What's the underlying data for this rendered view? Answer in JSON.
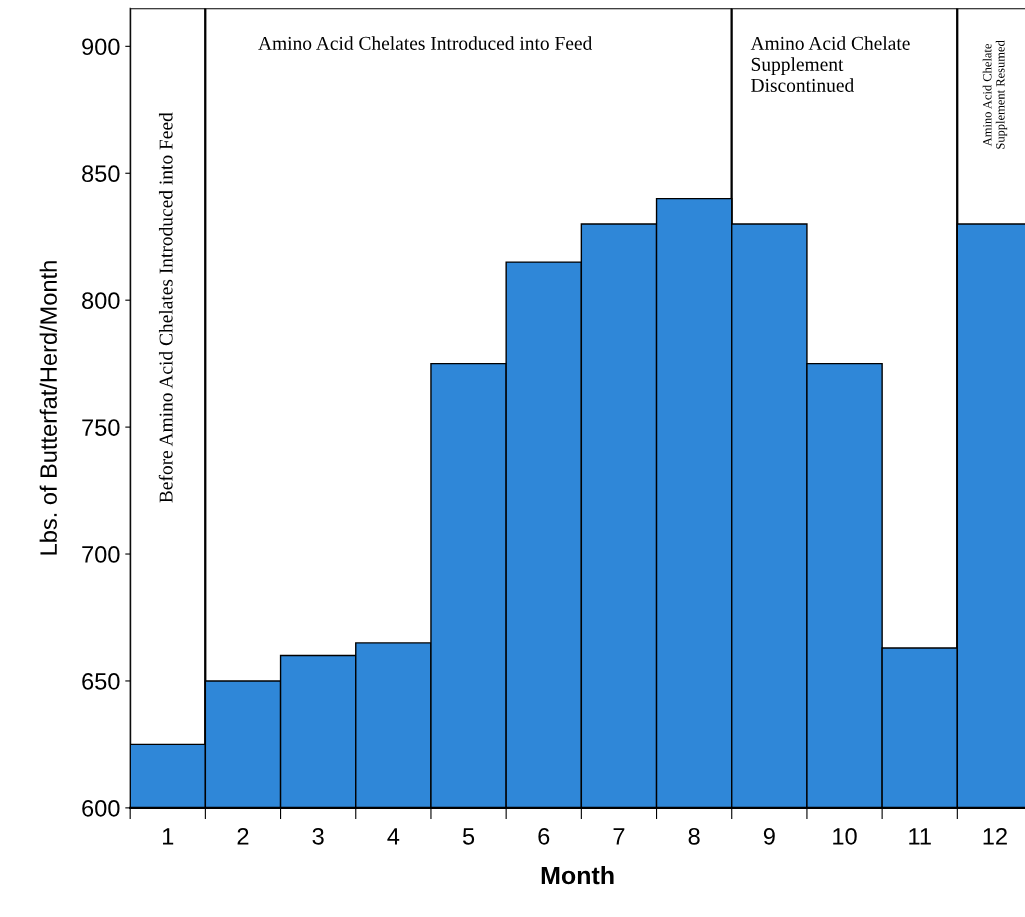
{
  "chart_data": {
    "type": "bar",
    "xlabel": "Month",
    "ylabel": "Lbs. of Butterfat/Herd/Month",
    "x": [
      1,
      2,
      3,
      4,
      5,
      6,
      7,
      8,
      9,
      10,
      11,
      12
    ],
    "values": [
      625,
      650,
      660,
      665,
      775,
      815,
      830,
      840,
      830,
      775,
      663,
      830
    ],
    "color": "#2f87d8",
    "xlim": [
      0.5,
      12.4
    ],
    "ylim": [
      600,
      915
    ],
    "xticks": [
      {
        "value": 0.5,
        "label": null
      },
      {
        "value": 1,
        "label": "1"
      },
      {
        "value": 1.5,
        "label": null
      },
      {
        "value": 2,
        "label": "2"
      },
      {
        "value": 2.5,
        "label": null
      },
      {
        "value": 3,
        "label": "3"
      },
      {
        "value": 3.5,
        "label": null
      },
      {
        "value": 4,
        "label": "4"
      },
      {
        "value": 4.5,
        "label": null
      },
      {
        "value": 5,
        "label": "5"
      },
      {
        "value": 5.5,
        "label": null
      },
      {
        "value": 6,
        "label": "6"
      },
      {
        "value": 6.5,
        "label": null
      },
      {
        "value": 7,
        "label": "7"
      },
      {
        "value": 7.5,
        "label": null
      },
      {
        "value": 8,
        "label": "8"
      },
      {
        "value": 8.5,
        "label": null
      },
      {
        "value": 9,
        "label": "9"
      },
      {
        "value": 9.5,
        "label": null
      },
      {
        "value": 10,
        "label": "10"
      },
      {
        "value": 10.5,
        "label": null
      },
      {
        "value": 11,
        "label": "11"
      },
      {
        "value": 11.5,
        "label": null
      },
      {
        "value": 12,
        "label": "12"
      }
    ],
    "yticks": [
      600,
      650,
      700,
      750,
      800,
      850,
      900
    ],
    "bands": [
      {
        "axis": "x",
        "from": 0.5,
        "to": 1.5,
        "label": "Before Amino Acid Chelates Introduced into Feed",
        "color": "#ffffff"
      },
      {
        "axis": "x",
        "from": 1.5,
        "to": 8.5,
        "label": "Amino Acid Chelates Introduced into Feed",
        "color": "#ffffff"
      },
      {
        "axis": "x",
        "from": 8.5,
        "to": 11.5,
        "label": "Amino Acid Chelate Supplement Discontinued",
        "color": "#ffffff"
      },
      {
        "axis": "x",
        "from": 11.5,
        "to": 12.5,
        "label": "Amino Acid Chelate Supplement Resumed",
        "color": "#ffffff"
      }
    ],
    "grid": false
  }
}
